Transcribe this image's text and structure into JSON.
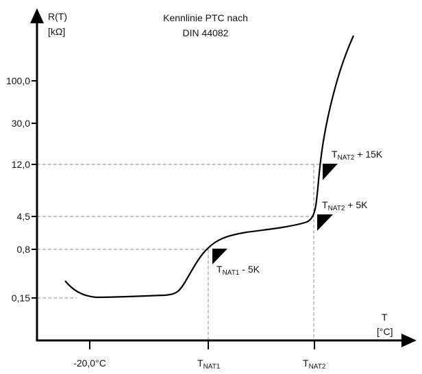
{
  "title": [
    "Kennlinie PTC nach",
    "DIN 44082"
  ],
  "y_axis": {
    "label": "R(T)",
    "unit": "[kΩ]",
    "ticks": [
      "100,0",
      "30,0",
      "12,0",
      "4,5",
      "0,8",
      "0,15"
    ]
  },
  "x_axis": {
    "label": "T",
    "unit": "[°C]",
    "ticks": [
      {
        "main": "-20,0°C",
        "sub": ""
      },
      {
        "main": "T",
        "sub": "NAT1"
      },
      {
        "main": "T",
        "sub": "NAT2"
      }
    ]
  },
  "annotations": [
    {
      "main": "T",
      "sub": "NAT2",
      "suffix": " + 15K"
    },
    {
      "main": "T",
      "sub": "NAT2",
      "suffix": " + 5K"
    },
    {
      "main": "T",
      "sub": "NAT1",
      "suffix": " - 5K"
    }
  ],
  "colors": {
    "curve": "#000000",
    "guides": "#888888"
  }
}
